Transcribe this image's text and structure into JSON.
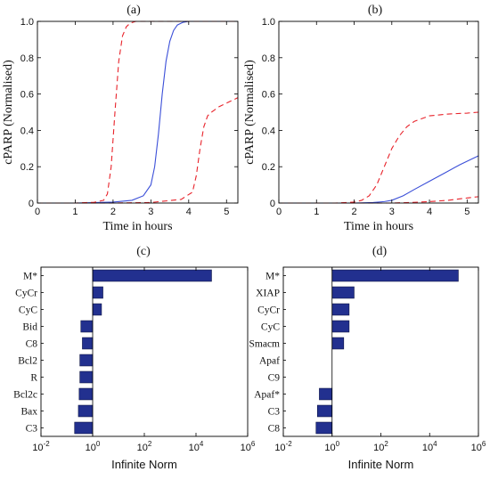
{
  "chart_data": [
    {
      "panel": "(a)",
      "type": "line",
      "xlabel": "Time in hours",
      "ylabel": "cPARP (Normalised)",
      "xlim": [
        0,
        5.3
      ],
      "ylim": [
        0,
        1
      ],
      "xticks": [
        "0",
        "1",
        "2",
        "3",
        "4",
        "5"
      ],
      "yticks": [
        "0",
        "0.2",
        "0.4",
        "0.6",
        "0.8",
        "1.0"
      ],
      "series": [
        {
          "style": "solid",
          "color": "#3b4fd8",
          "x": [
            0,
            1,
            2,
            2.5,
            2.8,
            3.0,
            3.1,
            3.2,
            3.3,
            3.4,
            3.5,
            3.6,
            3.7,
            3.85,
            4.0,
            4.5,
            5.3
          ],
          "y": [
            0,
            0,
            0.005,
            0.015,
            0.04,
            0.1,
            0.2,
            0.38,
            0.6,
            0.78,
            0.89,
            0.95,
            0.98,
            0.995,
            1.0,
            1.0,
            1.0
          ]
        },
        {
          "style": "dashed",
          "color": "#e8232b",
          "x": [
            0,
            1,
            1.5,
            1.75,
            1.85,
            1.95,
            2.05,
            2.15,
            2.25,
            2.35,
            2.45,
            2.6,
            3.0,
            5.3
          ],
          "y": [
            0,
            0,
            0.004,
            0.015,
            0.05,
            0.2,
            0.5,
            0.78,
            0.92,
            0.97,
            0.99,
            1.0,
            1.0,
            1.0
          ]
        },
        {
          "style": "dashed",
          "color": "#e8232b",
          "x": [
            0,
            2,
            3,
            3.8,
            4.1,
            4.2,
            4.3,
            4.4,
            4.5,
            4.6,
            4.8,
            5.0,
            5.3
          ],
          "y": [
            0,
            0,
            0.003,
            0.02,
            0.06,
            0.15,
            0.3,
            0.42,
            0.48,
            0.5,
            0.53,
            0.55,
            0.58
          ]
        }
      ]
    },
    {
      "panel": "(b)",
      "type": "line",
      "xlabel": "Time in hours",
      "ylabel": "cPARP (Normalised)",
      "xlim": [
        0,
        5.3
      ],
      "ylim": [
        0,
        1
      ],
      "xticks": [
        "0",
        "1",
        "2",
        "3",
        "4",
        "5"
      ],
      "yticks": [
        "0",
        "0.2",
        "0.4",
        "0.6",
        "0.8",
        "1.0"
      ],
      "series": [
        {
          "style": "solid",
          "color": "#3b4fd8",
          "x": [
            0,
            2,
            2.5,
            2.8,
            3.0,
            3.3,
            3.6,
            4.0,
            4.4,
            4.8,
            5.1,
            5.3
          ],
          "y": [
            0,
            0,
            0.003,
            0.008,
            0.015,
            0.04,
            0.075,
            0.12,
            0.165,
            0.21,
            0.24,
            0.26
          ]
        },
        {
          "style": "dashed",
          "color": "#e8232b",
          "x": [
            0,
            1.5,
            2.0,
            2.2,
            2.4,
            2.6,
            2.8,
            3.0,
            3.2,
            3.4,
            3.6,
            4.0,
            4.5,
            5.0,
            5.3
          ],
          "y": [
            0,
            0,
            0.005,
            0.015,
            0.04,
            0.1,
            0.2,
            0.3,
            0.37,
            0.42,
            0.45,
            0.48,
            0.49,
            0.495,
            0.5
          ]
        },
        {
          "style": "dashed",
          "color": "#e8232b",
          "x": [
            0,
            3.0,
            3.5,
            4.0,
            4.5,
            5.0,
            5.3
          ],
          "y": [
            0,
            0,
            0.003,
            0.008,
            0.015,
            0.028,
            0.035
          ]
        }
      ]
    },
    {
      "panel": "(c)",
      "type": "bar",
      "orientation": "horizontal",
      "xscale": "log",
      "xlabel": "Infinite Norm",
      "xlim_exp": [
        -2,
        6
      ],
      "xtick_exps": [
        -2,
        0,
        2,
        4,
        6
      ],
      "base_exp": 0,
      "categories": [
        "M*",
        "CyCr",
        "CyC",
        "Bid",
        "C8",
        "Bcl2",
        "R",
        "Bcl2c",
        "Bax",
        "C3"
      ],
      "values": [
        40000,
        2.5,
        2.2,
        0.35,
        0.4,
        0.32,
        0.32,
        0.3,
        0.28,
        0.2
      ]
    },
    {
      "panel": "(d)",
      "type": "bar",
      "orientation": "horizontal",
      "xscale": "log",
      "xlabel": "Infinite Norm",
      "xlim_exp": [
        -2,
        6
      ],
      "xtick_exps": [
        -2,
        0,
        2,
        4,
        6
      ],
      "base_exp": 0,
      "categories": [
        "M*",
        "XIAP",
        "CyCr",
        "CyC",
        "Smacm",
        "Apaf",
        "C9",
        "Apaf*",
        "C3",
        "C8"
      ],
      "values": [
        150000,
        8.0,
        5.0,
        5.0,
        3.0,
        1,
        1,
        0.3,
        0.25,
        0.22
      ]
    }
  ]
}
